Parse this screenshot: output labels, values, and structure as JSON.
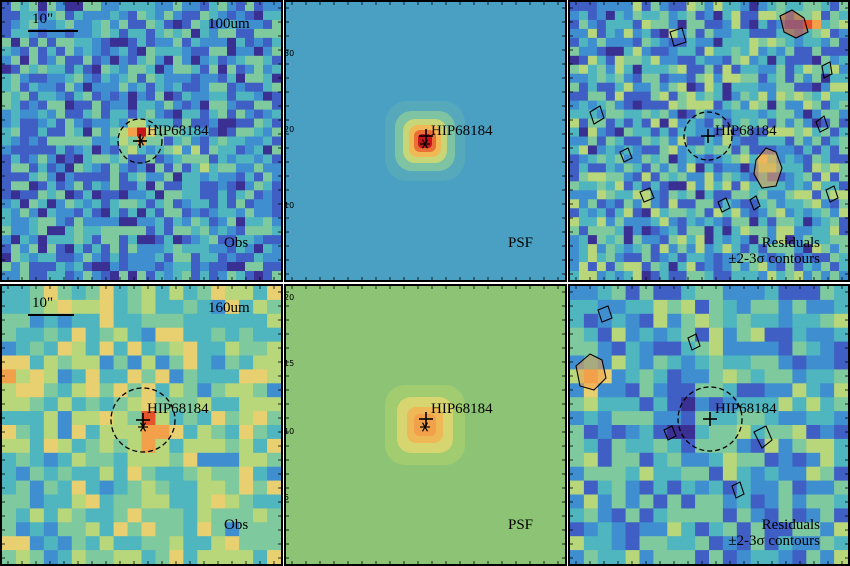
{
  "target": "HIP68184",
  "scale_bar": "10\"",
  "bands": [
    "100um",
    "160um"
  ],
  "panel_labels": {
    "obs": "Obs",
    "psf": "PSF",
    "residuals_line1": "Residuals",
    "residuals_line2": "±2-3σ contours"
  },
  "psf_axis_ticks": {
    "row1": [
      "30",
      "20",
      "10"
    ],
    "row2": [
      "20",
      "15",
      "10",
      "5"
    ]
  },
  "colors": {
    "colormap": [
      "#3a2f93",
      "#3f5fc4",
      "#3f8fd0",
      "#4fb5bf",
      "#7ec99e",
      "#b8d67a",
      "#e8d070",
      "#f2a04a",
      "#e5532c",
      "#c4151c"
    ],
    "psf_background_100um": "#4aa0c3",
    "psf_background_160um": "#8cc374"
  }
}
